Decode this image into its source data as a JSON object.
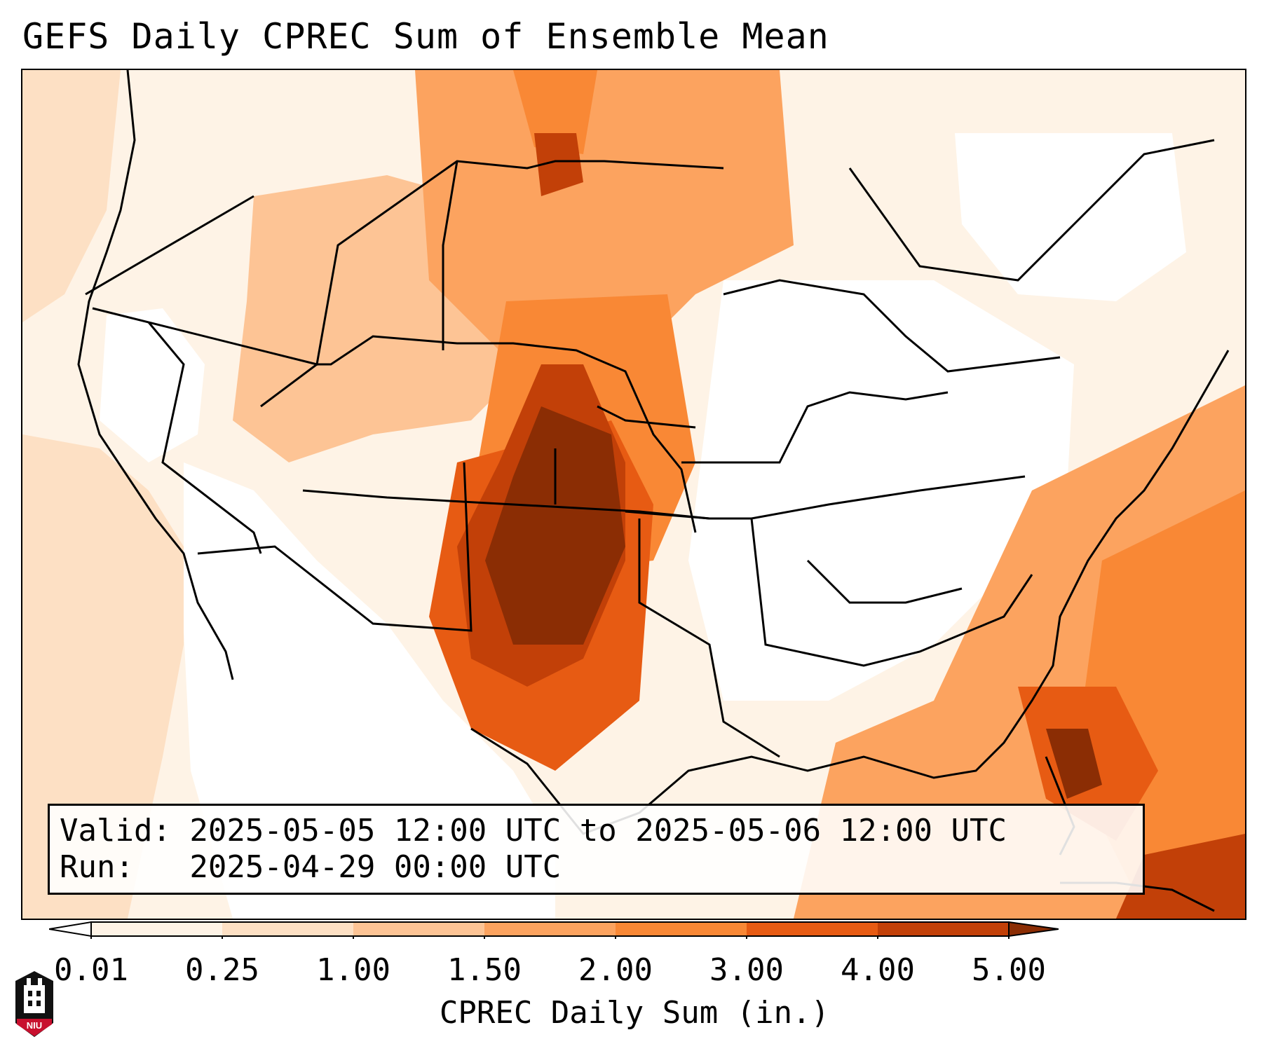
{
  "title": "GEFS Daily CPREC Sum of Ensemble Mean",
  "info": {
    "valid_line": "Valid: 2025-05-05 12:00 UTC to 2025-05-06 12:00 UTC",
    "run_line": "Run:   2025-04-29 00:00 UTC"
  },
  "colorbar": {
    "label": "CPREC Daily Sum (in.)",
    "ticks": [
      "0.01",
      "0.25",
      "1.00",
      "1.50",
      "2.00",
      "3.00",
      "4.00",
      "5.00"
    ],
    "colors": [
      "#ffffff",
      "#fef3e6",
      "#fde0c4",
      "#fdc495",
      "#fca35f",
      "#f98835",
      "#e75b13",
      "#c24008",
      "#8b2d04"
    ],
    "under_color": "#ffffff",
    "over_color": "#8b2d04"
  },
  "logo": {
    "text": "NIU"
  }
}
